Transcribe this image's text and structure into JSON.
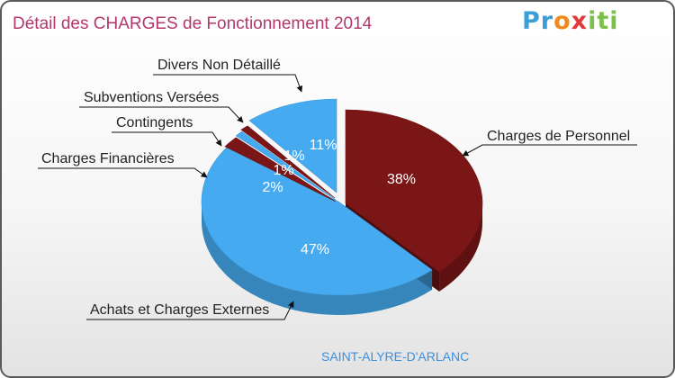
{
  "title": "Détail des CHARGES de Fonctionnement 2014",
  "logo": {
    "text": "Proxiti",
    "parts": [
      "Pr",
      "o",
      "x",
      "iti"
    ]
  },
  "commune": "SAINT-ALYRE-D'ARLANC",
  "colors": {
    "title": "#b5386a",
    "commune": "#3a8fe0",
    "blue": "#45aaf0",
    "darkred": "#7a1616"
  },
  "chart_data": {
    "type": "pie",
    "title": "Détail des CHARGES de Fonctionnement 2014",
    "slices": [
      {
        "label": "Charges de Personnel",
        "value": 38,
        "pct_label": "38%",
        "color": "#7a1616"
      },
      {
        "label": "Achats et Charges Externes",
        "value": 47,
        "pct_label": "47%",
        "color": "#45aaf0"
      },
      {
        "label": "Charges Financières",
        "value": 2,
        "pct_label": "2%",
        "color": "#7a1616"
      },
      {
        "label": "Contingents",
        "value": 1,
        "pct_label": "1%",
        "color": "#45aaf0"
      },
      {
        "label": "Subventions Versées",
        "value": 1,
        "pct_label": "1%",
        "color": "#7a1616"
      },
      {
        "label": "Divers Non Détaillé",
        "value": 11,
        "pct_label": "11%",
        "color": "#45aaf0"
      }
    ]
  }
}
